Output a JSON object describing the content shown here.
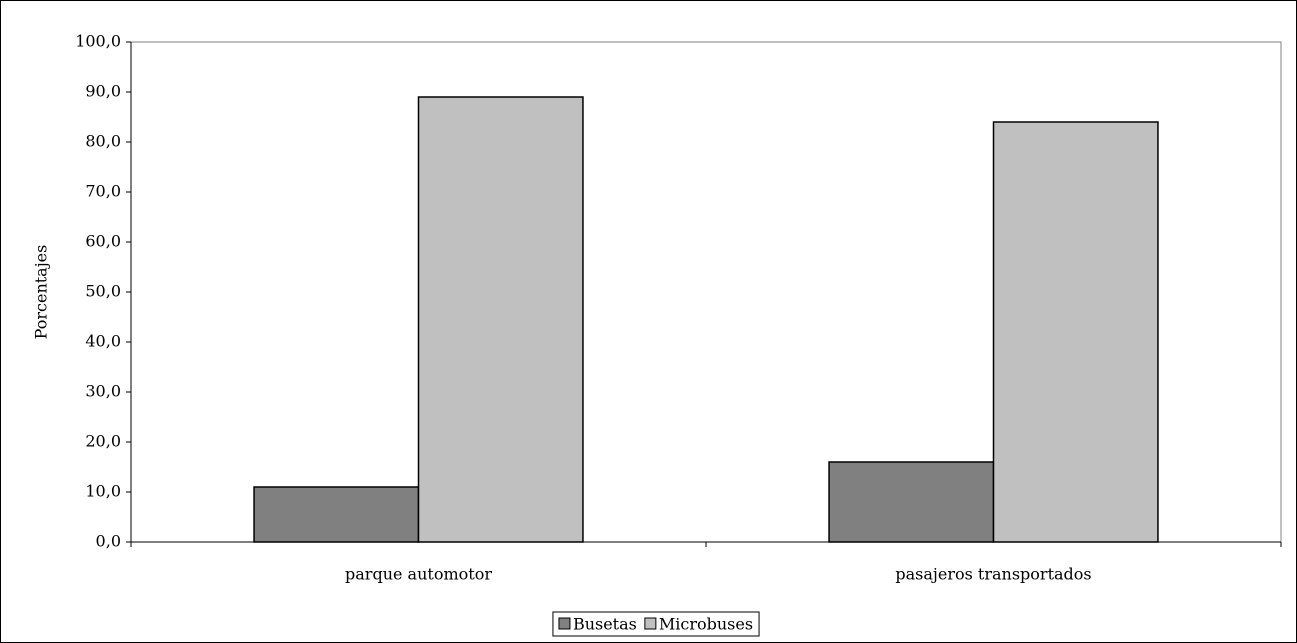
{
  "chart_data": {
    "type": "bar",
    "y_label": "Porcentajes",
    "categories": [
      "parque automotor",
      "pasajeros transportados"
    ],
    "series": [
      {
        "name": "Busetas",
        "color": "#808080",
        "values": [
          11,
          16
        ]
      },
      {
        "name": "Microbuses",
        "color": "#c0c0c0",
        "values": [
          89,
          84
        ]
      }
    ],
    "ylim": [
      0,
      100
    ],
    "yticks": [
      {
        "value": 0,
        "label": "0,0"
      },
      {
        "value": 10,
        "label": "10,0"
      },
      {
        "value": 20,
        "label": "20,0"
      },
      {
        "value": 30,
        "label": "30,0"
      },
      {
        "value": 40,
        "label": "40,0"
      },
      {
        "value": 50,
        "label": "50,0"
      },
      {
        "value": 60,
        "label": "60,0"
      },
      {
        "value": 70,
        "label": "70,0"
      },
      {
        "value": 80,
        "label": "80,0"
      },
      {
        "value": 90,
        "label": "90,0"
      },
      {
        "value": 100,
        "label": "100,0"
      }
    ],
    "grid": false,
    "legend": "bottom"
  }
}
